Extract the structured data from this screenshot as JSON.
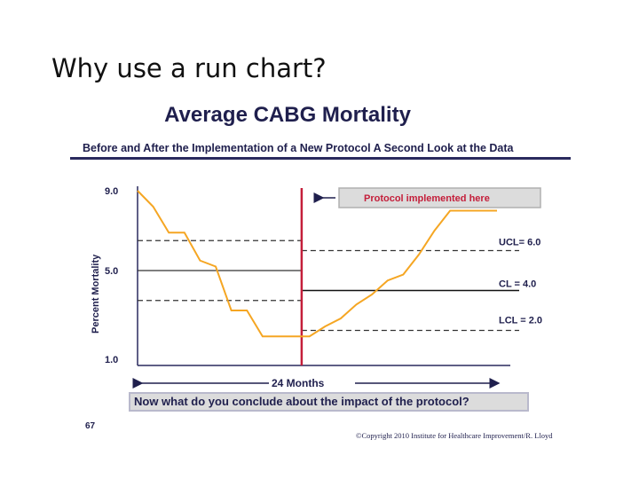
{
  "slide": {
    "title": "Why use a run chart?"
  },
  "chart_data": {
    "type": "line",
    "title": "Average CABG Mortality",
    "subtitle": "Before and After the Implementation of a New Protocol A Second Look at the Data",
    "ylabel": "Percent  Mortality",
    "xlabel": "24 Months",
    "ylim": [
      1.0,
      9.0
    ],
    "y_ticks": [
      {
        "value": 9.0,
        "label": "9.0"
      },
      {
        "value": 5.0,
        "label": "5.0"
      },
      {
        "value": 1.0,
        "label": "1.0"
      }
    ],
    "x": [
      0,
      1,
      2,
      3,
      4,
      5,
      6,
      7,
      8,
      9,
      10,
      11,
      12,
      13,
      14,
      15,
      16,
      17,
      18,
      19,
      20,
      21,
      22,
      23
    ],
    "series": [
      {
        "name": "Average CABG Mortality",
        "color": "#f5a623",
        "values": [
          9.0,
          8.2,
          6.9,
          6.9,
          5.5,
          5.2,
          3.0,
          3.0,
          1.7,
          1.7,
          1.7,
          1.7,
          2.2,
          2.6,
          3.3,
          3.8,
          4.5,
          4.8,
          5.8,
          7.0,
          8.0,
          8.0,
          8.0,
          8.0
        ]
      }
    ],
    "protocol_index": 10.5,
    "protocol_annotation": "Protocol  implemented here",
    "control_limits": {
      "before": {
        "ucl": 6.5,
        "cl": 5.0,
        "lcl": 3.5
      },
      "after": {
        "ucl": {
          "value": 6.0,
          "label": "UCL=  6.0"
        },
        "cl": {
          "value": 4.0,
          "label": "CL = 4.0"
        },
        "lcl": {
          "value": 2.0,
          "label": "LCL = 2.0"
        }
      }
    },
    "colors": {
      "data_line": "#f5a623",
      "protocol_line": "#c41e3a",
      "text": "#1f1f4d",
      "axes": "#2a2a5e"
    }
  },
  "footer": {
    "question": "Now what do you conclude about the impact of the protocol?",
    "page_number": "67",
    "copyright": "©Copyright  2010  Institute for Healthcare Improvement/R. Lloyd"
  }
}
